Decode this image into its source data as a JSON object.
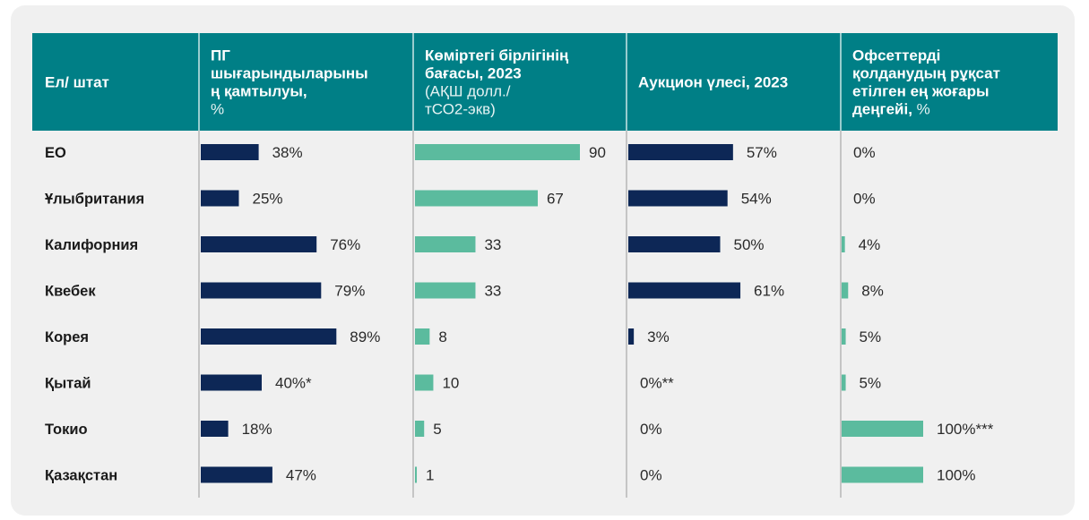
{
  "chart_data": {
    "type": "table",
    "columns": [
      {
        "key": "country",
        "header_bold": [
          "Ел/ штат"
        ],
        "header_normal": []
      },
      {
        "key": "coverage",
        "header_bold": [
          "ПГ",
          "шығарындыларыны",
          "ң қамтылуы,"
        ],
        "header_normal": [
          "%"
        ]
      },
      {
        "key": "price",
        "header_bold": [
          "Көміртегі бірлігінің",
          "бағасы, 2023"
        ],
        "header_normal": [
          "(АҚШ долл./",
          "тСО2-экв)"
        ]
      },
      {
        "key": "auction",
        "header_bold": [
          "Аукцион үлесі, 2023"
        ],
        "header_normal": []
      },
      {
        "key": "offset",
        "header_bold": [
          "Офсеттерді",
          "қолданудың рұқсат",
          "етілген ең жоғары",
          "деңгейі,"
        ],
        "header_normal_inline": " %"
      }
    ],
    "rows": [
      {
        "country": "ЕО",
        "coverage": 38,
        "coverage_label": "38%",
        "price": 90,
        "price_label": "90",
        "auction": 57,
        "auction_label": "57%",
        "offset": 0,
        "offset_label": "0%"
      },
      {
        "country": "Ұлыбритания",
        "coverage": 25,
        "coverage_label": "25%",
        "price": 67,
        "price_label": "67",
        "auction": 54,
        "auction_label": "54%",
        "offset": 0,
        "offset_label": "0%"
      },
      {
        "country": "Калифорния",
        "coverage": 76,
        "coverage_label": "76%",
        "price": 33,
        "price_label": "33",
        "auction": 50,
        "auction_label": "50%",
        "offset": 4,
        "offset_label": "4%"
      },
      {
        "country": "Квебек",
        "coverage": 79,
        "coverage_label": "79%",
        "price": 33,
        "price_label": "33",
        "auction": 61,
        "auction_label": "61%",
        "offset": 8,
        "offset_label": "8%"
      },
      {
        "country": "Корея",
        "coverage": 89,
        "coverage_label": "89%",
        "price": 8,
        "price_label": "8",
        "auction": 3,
        "auction_label": "3%",
        "offset": 5,
        "offset_label": "5%"
      },
      {
        "country": "Қытай",
        "coverage": 40,
        "coverage_label": "40%*",
        "price": 10,
        "price_label": "10",
        "auction": 0,
        "auction_label": "0%**",
        "offset": 5,
        "offset_label": "5%"
      },
      {
        "country": "Токио",
        "coverage": 18,
        "coverage_label": "18%",
        "price": 5,
        "price_label": "5",
        "auction": 0,
        "auction_label": "0%",
        "offset": 100,
        "offset_label": "100%***"
      },
      {
        "country": "Қазақстан",
        "coverage": 47,
        "coverage_label": "47%",
        "price": 1,
        "price_label": "1",
        "auction": 0,
        "auction_label": "0%",
        "offset": 100,
        "offset_label": "100%"
      }
    ]
  },
  "colors": {
    "header_bg": "#007f86",
    "bar_dark": "#0d2756",
    "bar_teal": "#5bbb9e",
    "divider": "#9a9a9a"
  }
}
